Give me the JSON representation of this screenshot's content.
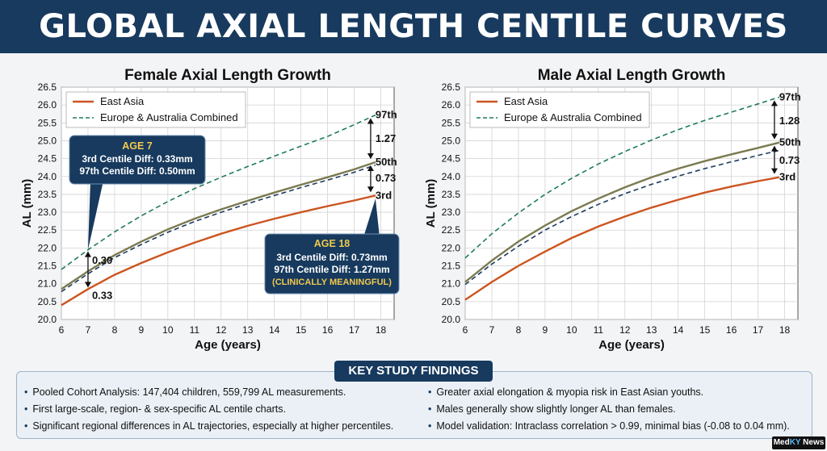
{
  "header": {
    "title": "GLOBAL AXIAL LENGTH CENTILE CURVES"
  },
  "colors": {
    "east_asia": "#cc5520",
    "combined_dash": "#1e7b5a",
    "median": "#7a7a50",
    "dash_50": "#1e3a5f",
    "banner": "#173a5e"
  },
  "chart_data": [
    {
      "type": "line",
      "title": "Female Axial Length Growth",
      "xlabel": "Age (years)",
      "ylabel": "AL (mm)",
      "xlim": [
        6,
        18.5
      ],
      "ylim": [
        20.0,
        26.5
      ],
      "xticks": [
        "6",
        "7",
        "8",
        "9",
        "10",
        "11",
        "12",
        "13",
        "14",
        "15",
        "16",
        "17",
        "18"
      ],
      "yticks": [
        "20.0",
        "20.5",
        "21.0",
        "21.5",
        "22.0",
        "22.5",
        "23.0",
        "23.5",
        "24.0",
        "24.5",
        "25.0",
        "25.5",
        "26.0",
        "26.5"
      ],
      "grid": true,
      "legend_position": "top-left",
      "legend": [
        "East Asia",
        "Europe & Australia Combined"
      ],
      "series": [
        {
          "name": "East Asia",
          "style": "solid",
          "color": "#cc5520",
          "x": [
            6,
            7,
            8,
            9,
            10,
            11,
            12,
            13,
            14,
            15,
            16,
            17,
            17.8
          ],
          "values": [
            20.4,
            20.85,
            21.25,
            21.58,
            21.88,
            22.15,
            22.4,
            22.62,
            22.82,
            23.0,
            23.17,
            23.33,
            23.47
          ]
        },
        {
          "style": "solid",
          "color": "#7a7a50",
          "x": [
            6,
            7,
            8,
            9,
            10,
            11,
            12,
            13,
            14,
            15,
            16,
            17,
            17.8
          ],
          "values": [
            20.85,
            21.35,
            21.8,
            22.18,
            22.52,
            22.82,
            23.08,
            23.32,
            23.55,
            23.77,
            23.98,
            24.2,
            24.4
          ]
        },
        {
          "style": "dashed",
          "color": "#1e3a5f",
          "x": [
            6,
            7,
            8,
            9,
            10,
            11,
            12,
            13,
            14,
            15,
            16,
            17,
            17.8
          ],
          "values": [
            20.78,
            21.28,
            21.73,
            22.1,
            22.44,
            22.74,
            23.0,
            23.24,
            23.47,
            23.69,
            23.9,
            24.12,
            24.32
          ]
        },
        {
          "name": "Europe & Australia Combined",
          "style": "dashed",
          "color": "#1e7b5a",
          "x": [
            6,
            7,
            8,
            9,
            10,
            11,
            12,
            13,
            14,
            15,
            16,
            17,
            17.8
          ],
          "values": [
            21.4,
            21.95,
            22.45,
            22.9,
            23.3,
            23.66,
            23.98,
            24.28,
            24.57,
            24.85,
            25.12,
            25.45,
            25.72
          ]
        }
      ],
      "centile_labels": [
        {
          "text": "97th",
          "y": 25.72
        },
        {
          "text": "50th",
          "y": 24.4
        },
        {
          "text": "3rd",
          "y": 23.47
        }
      ],
      "diff_labels": [
        {
          "text": "1.27",
          "y": 25.05
        },
        {
          "text": "0.73",
          "y": 23.95
        }
      ],
      "left_diff_labels": [
        {
          "text": "0.30",
          "y": 21.65
        },
        {
          "text": "0.33",
          "y": 20.67
        }
      ],
      "callouts": [
        {
          "title": "AGE 7",
          "lines": [
            "3rd Centile Diff: 0.33mm",
            "97th Centile Diff: 0.50mm"
          ]
        },
        {
          "title": "AGE 18",
          "lines": [
            "3rd Centile Diff: 0.73mm",
            "97th Centile Diff: 1.27mm",
            "(CLINICALLY MEANINGFUL)"
          ]
        }
      ]
    },
    {
      "type": "line",
      "title": "Male Axial Length Growth",
      "xlabel": "Age (years)",
      "ylabel": "AL (mm)",
      "xlim": [
        6,
        18.5
      ],
      "ylim": [
        20.0,
        26.5
      ],
      "xticks": [
        "6",
        "7",
        "8",
        "9",
        "10",
        "11",
        "12",
        "13",
        "14",
        "15",
        "16",
        "17",
        "18"
      ],
      "yticks": [
        "20.0",
        "20.5",
        "21.0",
        "21.5",
        "22.0",
        "22.5",
        "23.0",
        "23.5",
        "24.0",
        "24.5",
        "25.0",
        "25.5",
        "26.0",
        "26.5"
      ],
      "grid": true,
      "legend_position": "top-left",
      "legend": [
        "East Asia",
        "Europe & Australia Combined"
      ],
      "series": [
        {
          "name": "East Asia",
          "style": "solid",
          "color": "#cc5520",
          "x": [
            6,
            7,
            8,
            9,
            10,
            11,
            12,
            13,
            14,
            15,
            16,
            17,
            17.8
          ],
          "values": [
            20.55,
            21.05,
            21.5,
            21.9,
            22.28,
            22.6,
            22.88,
            23.13,
            23.35,
            23.55,
            23.72,
            23.87,
            23.98
          ]
        },
        {
          "style": "solid",
          "color": "#7a7a50",
          "x": [
            6,
            7,
            8,
            9,
            10,
            11,
            12,
            13,
            14,
            15,
            16,
            17,
            17.8
          ],
          "values": [
            21.05,
            21.65,
            22.18,
            22.63,
            23.03,
            23.38,
            23.7,
            23.98,
            24.22,
            24.43,
            24.62,
            24.8,
            24.95
          ]
        },
        {
          "style": "dashed",
          "color": "#1e3a5f",
          "x": [
            6,
            7,
            8,
            9,
            10,
            11,
            12,
            13,
            14,
            15,
            16,
            17,
            17.8
          ],
          "values": [
            20.98,
            21.55,
            22.05,
            22.5,
            22.88,
            23.22,
            23.52,
            23.78,
            24.01,
            24.22,
            24.41,
            24.59,
            24.73
          ]
        },
        {
          "name": "Europe & Australia Combined",
          "style": "dashed",
          "color": "#1e7b5a",
          "x": [
            6,
            7,
            8,
            9,
            10,
            11,
            12,
            13,
            14,
            15,
            16,
            17,
            17.8
          ],
          "values": [
            21.72,
            22.4,
            22.98,
            23.5,
            23.95,
            24.35,
            24.7,
            25.02,
            25.31,
            25.57,
            25.8,
            26.03,
            26.22
          ]
        }
      ],
      "centile_labels": [
        {
          "text": "97th",
          "y": 26.22
        },
        {
          "text": "50th",
          "y": 24.95
        },
        {
          "text": "3rd",
          "y": 23.98
        }
      ],
      "diff_labels": [
        {
          "text": "1.28",
          "y": 25.55
        },
        {
          "text": "0.73",
          "y": 24.45
        }
      ],
      "left_diff_labels": [],
      "callouts": []
    }
  ],
  "findings": {
    "title": "KEY STUDY FINDINGS",
    "left": [
      "Pooled Cohort Analysis: 147,404 children, 559,799 AL measurements.",
      "First large-scale, region- & sex-specific AL centile charts.",
      "Significant regional differences in AL trajectories, especially at higher percentiles."
    ],
    "right": [
      "Greater axial elongation & myopia risk in East Asian youths.",
      "Males generally show slightly longer AL than females.",
      "Model validation: Intraclass correlation > 0.99, minimal bias (-0.08 to 0.04 mm)."
    ]
  },
  "logo": {
    "prefix": "Med",
    "mid": "KY",
    "suffix": " News"
  }
}
